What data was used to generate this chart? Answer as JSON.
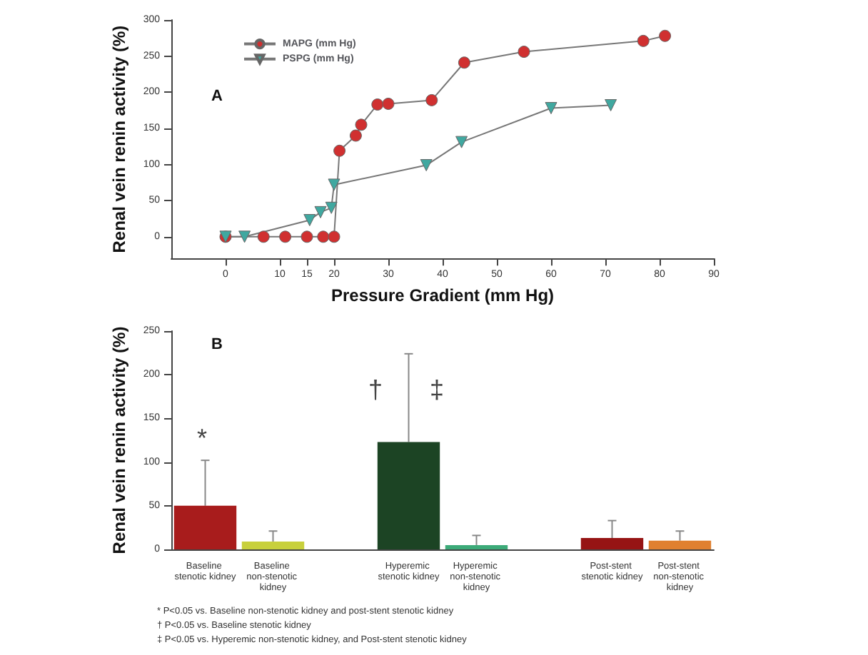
{
  "chart_data": [
    {
      "type": "line",
      "xlabel": "Pressure Gradient (mm Hg)",
      "ylabel": "Renal vein renin activity (%)",
      "xlim": [
        -10,
        90
      ],
      "xticks": [
        0,
        10,
        15,
        20,
        30,
        40,
        50,
        60,
        70,
        80,
        90
      ],
      "ylim": [
        -30,
        300
      ],
      "yticks": [
        0,
        50,
        100,
        150,
        200,
        250,
        300
      ],
      "grid": false,
      "legend": "top left",
      "marker": "circle",
      "annotations": [
        "A"
      ],
      "series": [
        {
          "name": "MAPG (mm Hg)",
          "color": "#d03030",
          "x": [
            0,
            7,
            11,
            15,
            18,
            20,
            21,
            24,
            25,
            28,
            30,
            38,
            44,
            55,
            77,
            81
          ],
          "values": [
            0,
            0,
            0,
            0,
            0,
            0,
            119,
            140,
            155,
            183,
            184,
            189,
            241,
            256,
            271,
            278
          ]
        },
        {
          "name": "PSPG (mm Hg)",
          "color": "#40a8a0",
          "marker": "triangle",
          "x": [
            0,
            3.5,
            15.5,
            17.5,
            19.5,
            20,
            37,
            43.5,
            60,
            71
          ],
          "values": [
            0,
            0,
            23,
            34,
            40,
            72,
            99,
            131,
            178,
            182
          ]
        }
      ]
    },
    {
      "type": "bar",
      "ylabel": "Renal vein renin activity (%)",
      "ylim": [
        0,
        250
      ],
      "yticks": [
        0,
        50,
        100,
        150,
        200,
        250
      ],
      "grid": false,
      "categories": [
        "Baseline stenotic kidney",
        "Baseline non-stenotic kidney",
        null,
        "Hyperemic stenotic kidney",
        "Hyperemic non-stenotic kidney",
        null,
        "Post-stent stenotic kidney",
        "Post-stent non-stenotic kidney"
      ],
      "values": [
        50,
        9,
        null,
        123,
        5,
        null,
        13,
        10
      ],
      "colors": [
        "#a81c1c",
        "#c8d03c",
        "#ffffff",
        "#1c4424",
        "#3caa78",
        "#ffffff",
        "#961414",
        "#e08030"
      ],
      "errors": [
        [
          50,
          102
        ],
        [
          9,
          21
        ],
        null,
        [
          123,
          224
        ],
        [
          5,
          16
        ],
        null,
        [
          13,
          33
        ],
        [
          10,
          21
        ]
      ],
      "annotations": [
        "B",
        "*",
        "†",
        "‡",
        "* P<0.05 vs. Baseline non-stenotic kidney and post-stent stenotic kidney",
        "† P<0.05 vs. Baseline stenotic kidney",
        "‡ P<0.05 vs. Hyperemic non-stenotic kidney, and Post-stent stenotic kidney"
      ]
    }
  ]
}
